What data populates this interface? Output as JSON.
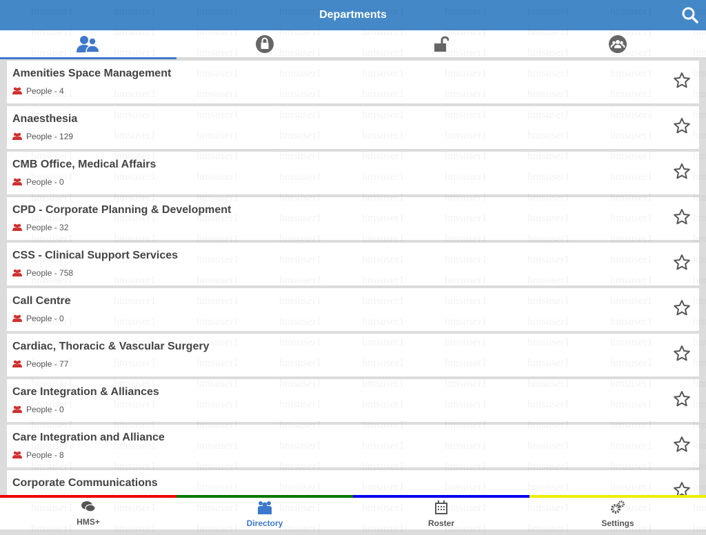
{
  "header": {
    "title": "Departments",
    "search_icon": "search-icon"
  },
  "tabs": [
    {
      "icon": "people-icon",
      "active": true
    },
    {
      "icon": "lock-icon"
    },
    {
      "icon": "unlock-icon"
    },
    {
      "icon": "group-icon"
    }
  ],
  "departments": [
    {
      "name": "Amenities Space Management",
      "people": "People - 4"
    },
    {
      "name": "Anaesthesia",
      "people": "People - 129"
    },
    {
      "name": "CMB Office, Medical Affairs",
      "people": "People - 0"
    },
    {
      "name": "CPD - Corporate Planning & Development",
      "people": "People - 32"
    },
    {
      "name": "CSS - Clinical Support Services",
      "people": "People - 758"
    },
    {
      "name": "Call Centre",
      "people": "People - 0"
    },
    {
      "name": "Cardiac, Thoracic & Vascular Surgery",
      "people": "People - 77"
    },
    {
      "name": "Care Integration & Alliances",
      "people": "People - 0"
    },
    {
      "name": "Care Integration and Alliance",
      "people": "People - 8"
    },
    {
      "name": "Corporate Communications",
      "people": ""
    }
  ],
  "bottom_nav": [
    {
      "label": "HMS+",
      "icon": "chat-icon",
      "color": "#ee0000"
    },
    {
      "label": "Directory",
      "icon": "directory-icon",
      "color": "#007700",
      "active": true
    },
    {
      "label": "Roster",
      "icon": "calendar-icon",
      "color": "#0000ee"
    },
    {
      "label": "Settings",
      "icon": "gears-icon",
      "color": "#eeee00"
    }
  ],
  "watermark": "hmsuser1",
  "colors": {
    "accent": "#4488c8",
    "active": "#3d78cc",
    "people_icon": "#d03030"
  }
}
